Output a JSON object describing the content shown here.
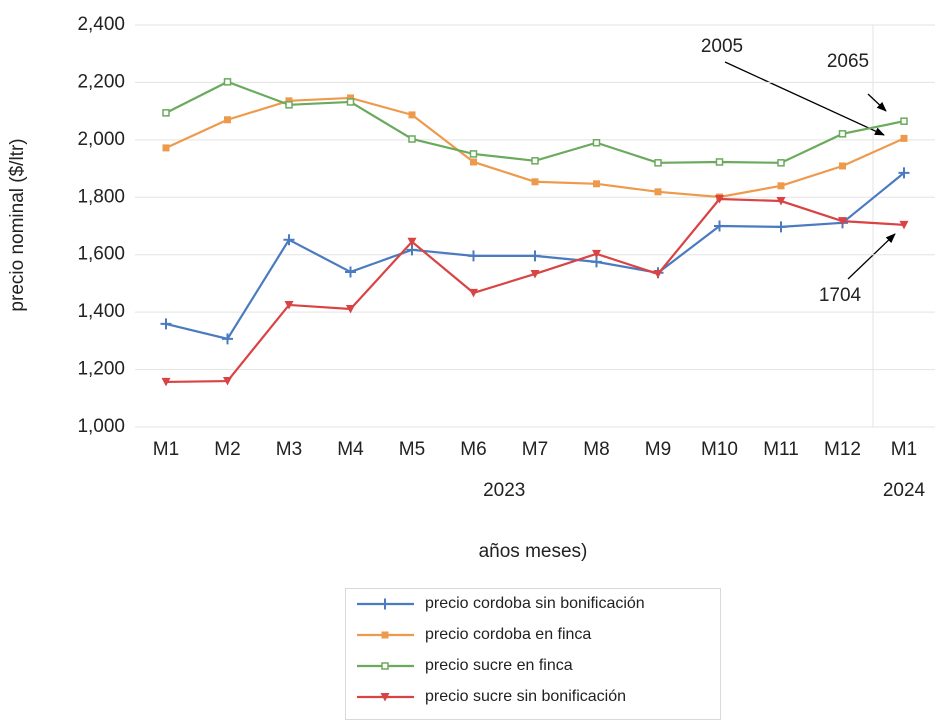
{
  "chart_data": {
    "type": "line",
    "categories": [
      "M1",
      "M2",
      "M3",
      "M4",
      "M5",
      "M6",
      "M7",
      "M8",
      "M9",
      "M10",
      "M11",
      "M12",
      "M1"
    ],
    "years": [
      "2023",
      "2024"
    ],
    "y_label": "precio nominal ($/ltr)",
    "x_label": "años meses)",
    "ylim": [
      1000,
      2400
    ],
    "yticks": [
      {
        "value": 1000,
        "label": "1,000"
      },
      {
        "value": 1200,
        "label": "1,200"
      },
      {
        "value": 1400,
        "label": "1,400"
      },
      {
        "value": 1600,
        "label": "1,600"
      },
      {
        "value": 1800,
        "label": "1,800"
      },
      {
        "value": 2000,
        "label": "2,000"
      },
      {
        "value": 2200,
        "label": "2,200"
      },
      {
        "value": 2400,
        "label": "2,400"
      }
    ],
    "grid": true,
    "legend": "bottom",
    "series": [
      {
        "name": "precio cordoba sin bonificación",
        "color": "#4a7bc0",
        "marker": "plus",
        "values": [
          1359,
          1307,
          1652,
          1540,
          1617,
          1596,
          1596,
          1575,
          1537,
          1700,
          1697,
          1711,
          1885
        ]
      },
      {
        "name": "precio cordoba en finca",
        "color": "#ee9a4c",
        "marker": "square",
        "values": [
          1972,
          2070,
          2136,
          2146,
          2087,
          1923,
          1854,
          1847,
          1819,
          1801,
          1840,
          1909,
          2005
        ]
      },
      {
        "name": "precio sucre en finca",
        "color": "#6aaa5d",
        "marker": "hollow-square",
        "values": [
          2094,
          2202,
          2122,
          2132,
          2003,
          1951,
          1927,
          1990,
          1920,
          1923,
          1920,
          2021,
          2065
        ]
      },
      {
        "name": "precio sucre sin bonificación",
        "color": "#d94343",
        "marker": "triangle-down",
        "values": [
          1157,
          1160,
          1425,
          1411,
          1645,
          1467,
          1533,
          1603,
          1533,
          1794,
          1787,
          1717,
          1704
        ]
      }
    ],
    "annotations": [
      {
        "text": "2005"
      },
      {
        "text": "2065"
      },
      {
        "text": "1704"
      }
    ]
  }
}
